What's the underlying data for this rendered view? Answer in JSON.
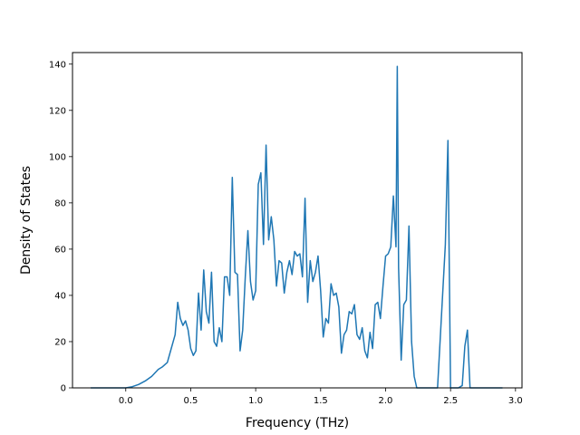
{
  "chart_data": {
    "type": "line",
    "title": "",
    "xlabel": "Frequency (THz)",
    "ylabel": "Density of States",
    "xlim": [
      -0.41,
      3.05
    ],
    "ylim": [
      0,
      145
    ],
    "xticks": [
      0.0,
      0.5,
      1.0,
      1.5,
      2.0,
      2.5,
      3.0
    ],
    "xtick_labels": [
      "0.0",
      "0.5",
      "1.0",
      "1.5",
      "2.0",
      "2.5",
      "3.0"
    ],
    "yticks": [
      0,
      20,
      40,
      60,
      80,
      100,
      120,
      140
    ],
    "ytick_labels": [
      "0",
      "20",
      "40",
      "60",
      "80",
      "100",
      "120",
      "140"
    ],
    "grid": false,
    "line_color": "#1f77b4",
    "series": [
      {
        "x": [
          -0.27,
          -0.1,
          0.0,
          0.05,
          0.1,
          0.15,
          0.2,
          0.25,
          0.28,
          0.32,
          0.35,
          0.38,
          0.4,
          0.42,
          0.44,
          0.46,
          0.48,
          0.5,
          0.52,
          0.54,
          0.56,
          0.58,
          0.6,
          0.62,
          0.64,
          0.66,
          0.68,
          0.7,
          0.72,
          0.74,
          0.76,
          0.78,
          0.8,
          0.82,
          0.84,
          0.86,
          0.88,
          0.9,
          0.92,
          0.94,
          0.96,
          0.98,
          1.0,
          1.02,
          1.04,
          1.06,
          1.08,
          1.1,
          1.12,
          1.14,
          1.16,
          1.18,
          1.2,
          1.22,
          1.24,
          1.26,
          1.28,
          1.3,
          1.32,
          1.34,
          1.36,
          1.38,
          1.4,
          1.42,
          1.44,
          1.46,
          1.48,
          1.5,
          1.52,
          1.54,
          1.56,
          1.58,
          1.6,
          1.62,
          1.64,
          1.66,
          1.68,
          1.7,
          1.72,
          1.74,
          1.76,
          1.78,
          1.8,
          1.82,
          1.84,
          1.86,
          1.88,
          1.9,
          1.92,
          1.94,
          1.96,
          1.98,
          2.0,
          2.02,
          2.04,
          2.06,
          2.08,
          2.09,
          2.1,
          2.12,
          2.14,
          2.16,
          2.18,
          2.2,
          2.22,
          2.24,
          2.26,
          2.28,
          2.3,
          2.4,
          2.46,
          2.48,
          2.5,
          2.52,
          2.56,
          2.59,
          2.61,
          2.63,
          2.65,
          2.7,
          2.8,
          2.9
        ],
        "y": [
          0,
          0,
          0,
          0.5,
          1.5,
          3,
          5,
          8,
          9,
          11,
          17,
          23,
          37,
          30,
          27,
          29,
          25,
          17,
          14,
          16,
          41,
          25,
          51,
          33,
          28,
          50,
          20,
          18,
          26,
          20,
          48,
          48,
          40,
          91,
          50,
          49,
          16,
          25,
          48,
          68,
          46,
          38,
          42,
          88,
          93,
          62,
          105,
          64,
          74,
          64,
          44,
          55,
          54,
          41,
          50,
          55,
          49,
          59,
          57,
          58,
          48,
          82,
          37,
          55,
          46,
          50,
          57,
          42,
          22,
          30,
          28,
          45,
          40,
          41,
          35,
          15,
          23,
          25,
          33,
          32,
          36,
          23,
          21,
          26,
          16,
          13,
          24,
          17,
          36,
          37,
          30,
          44,
          57,
          58,
          61,
          83,
          61,
          139,
          52,
          12,
          36,
          38,
          70,
          20,
          5,
          0,
          0,
          0,
          0,
          0,
          62,
          107,
          0,
          0,
          0,
          1,
          18,
          25,
          0,
          0,
          0,
          0
        ]
      }
    ]
  }
}
